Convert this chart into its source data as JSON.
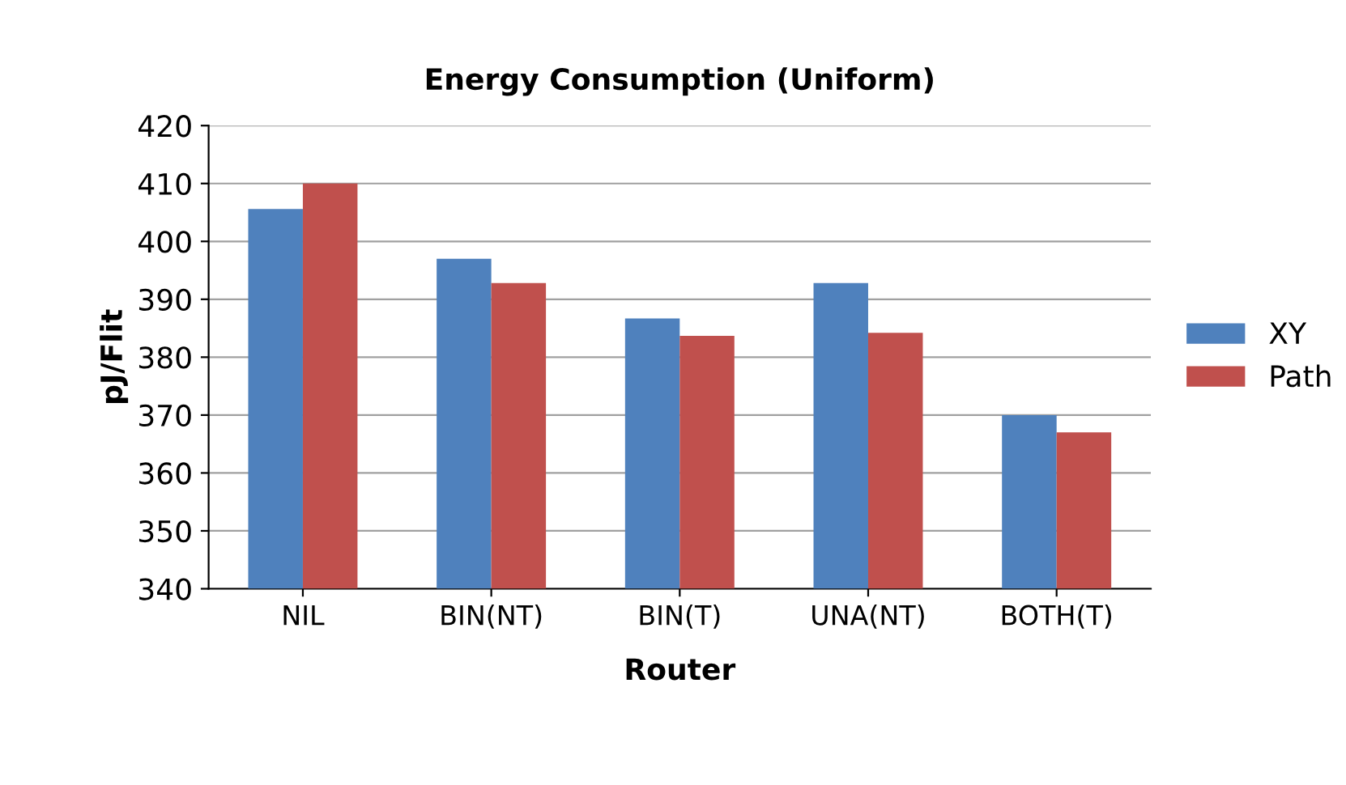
{
  "chart_data": {
    "type": "bar",
    "title": "Energy Consumption (Uniform)",
    "xlabel": "Router",
    "ylabel": "pJ/Flit",
    "categories": [
      "NIL",
      "BIN(NT)",
      "BIN(T)",
      "UNA(NT)",
      "BOTH(T)"
    ],
    "series": [
      {
        "name": "XY",
        "color": "#4f81bd",
        "values": [
          405.6,
          397,
          386.7,
          392.8,
          370
        ]
      },
      {
        "name": "Path",
        "color": "#c0504d",
        "values": [
          410,
          392.8,
          383.7,
          384.2,
          367
        ]
      }
    ],
    "ylim": [
      340,
      420
    ],
    "yticks": [
      340,
      350,
      360,
      370,
      380,
      390,
      400,
      410,
      420
    ],
    "grid": "y",
    "legend": "right"
  }
}
